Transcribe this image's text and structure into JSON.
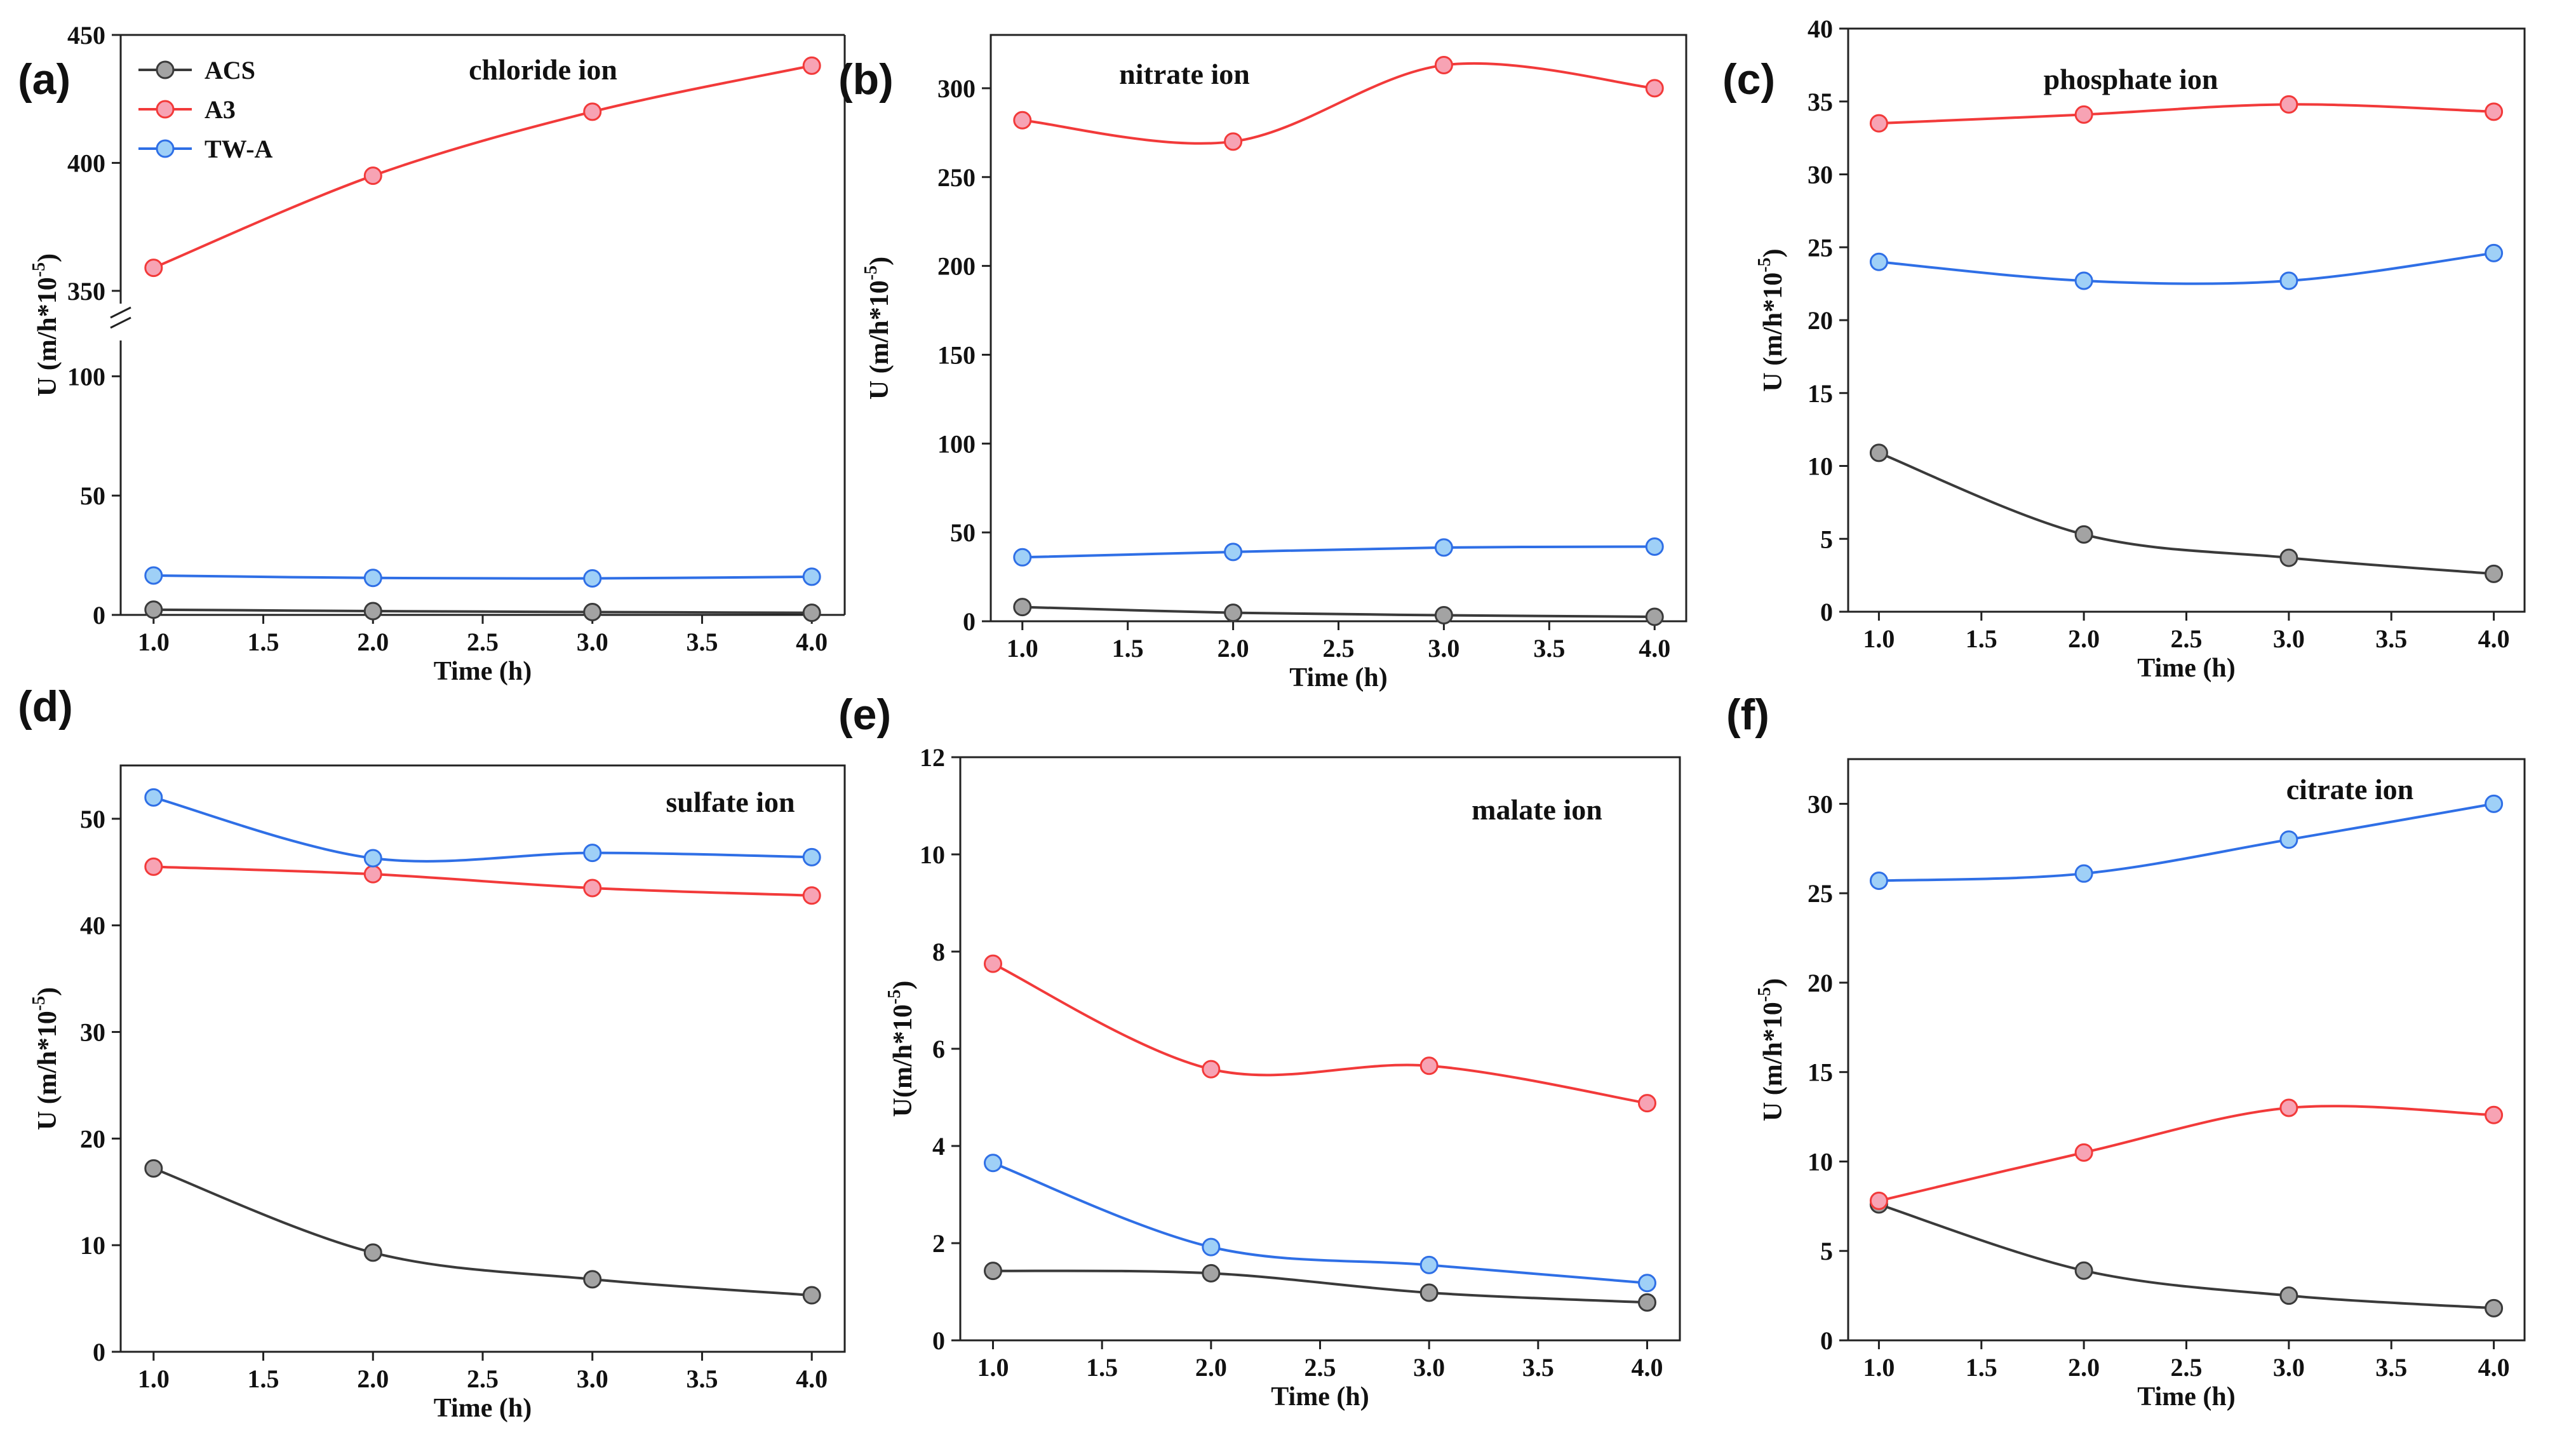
{
  "legend": [
    {
      "name": "ACS",
      "color": "#3a3a3a",
      "fill": "#a3a3a3"
    },
    {
      "name": "A3",
      "color": "#f23a3a",
      "fill": "#f7a3b4"
    },
    {
      "name": "TW-A",
      "color": "#2f6fe6",
      "fill": "#9fd0f7"
    }
  ],
  "chart_data": [
    {
      "panel": "(a)",
      "type": "line",
      "annotation": "chloride ion",
      "xlabel": "Time (h)",
      "ylabel": "U (m/h*10",
      "ylabel_sup": "-5",
      "ylabel_close": ")",
      "x": [
        1.0,
        2.0,
        3.0,
        4.0
      ],
      "xticks": [
        "1.0",
        "1.5",
        "2.0",
        "2.5",
        "3.0",
        "3.5",
        "4.0"
      ],
      "broken_y": true,
      "yticks_lower": [
        "0",
        "50",
        "100"
      ],
      "yticks_upper": [
        "350",
        "400",
        "450"
      ],
      "ylim_lower": [
        0,
        115
      ],
      "ylim_upper": [
        345,
        450
      ],
      "series": [
        {
          "name": "ACS",
          "values": [
            2.2,
            1.6,
            1.2,
            0.9
          ]
        },
        {
          "name": "A3",
          "values": [
            359,
            395,
            420,
            438
          ]
        },
        {
          "name": "TW-A",
          "values": [
            16.5,
            15.5,
            15.3,
            16.0
          ]
        }
      ]
    },
    {
      "panel": "(b)",
      "type": "line",
      "annotation": "nitrate ion",
      "xlabel": "Time (h)",
      "ylabel": "U (m/h*10",
      "ylabel_sup": "-5",
      "ylabel_close": ")",
      "x": [
        1.0,
        2.0,
        3.0,
        4.0
      ],
      "xticks": [
        "1.0",
        "1.5",
        "2.0",
        "2.5",
        "3.0",
        "3.5",
        "4.0"
      ],
      "yticks": [
        "0",
        "50",
        "100",
        "150",
        "200",
        "250",
        "300"
      ],
      "ylim": [
        0,
        330
      ],
      "series": [
        {
          "name": "ACS",
          "values": [
            8.0,
            4.8,
            3.4,
            2.5
          ]
        },
        {
          "name": "A3",
          "values": [
            282,
            270,
            313,
            300
          ]
        },
        {
          "name": "TW-A",
          "values": [
            36,
            39,
            41.5,
            42
          ]
        }
      ]
    },
    {
      "panel": "(c)",
      "type": "line",
      "annotation": "phosphate ion",
      "xlabel": "Time (h)",
      "ylabel": "U (m/h*10",
      "ylabel_sup": "-5",
      "ylabel_close": ")",
      "x": [
        1.0,
        2.0,
        3.0,
        4.0
      ],
      "xticks": [
        "1.0",
        "1.5",
        "2.0",
        "2.5",
        "3.0",
        "3.5",
        "4.0"
      ],
      "yticks": [
        "0",
        "5",
        "10",
        "15",
        "20",
        "25",
        "30",
        "35",
        "40"
      ],
      "ylim": [
        0,
        40
      ],
      "series": [
        {
          "name": "ACS",
          "values": [
            10.9,
            5.3,
            3.7,
            2.6
          ]
        },
        {
          "name": "A3",
          "values": [
            33.5,
            34.1,
            34.8,
            34.3
          ]
        },
        {
          "name": "TW-A",
          "values": [
            24.0,
            22.7,
            22.7,
            24.6
          ]
        }
      ]
    },
    {
      "panel": "(d)",
      "type": "line",
      "annotation": "sulfate ion",
      "xlabel": "Time (h)",
      "ylabel": "U (m/h*10",
      "ylabel_sup": "-5",
      "ylabel_close": ")",
      "x": [
        1.0,
        2.0,
        3.0,
        4.0
      ],
      "xticks": [
        "1.0",
        "1.5",
        "2.0",
        "2.5",
        "3.0",
        "3.5",
        "4.0"
      ],
      "yticks": [
        "0",
        "10",
        "20",
        "30",
        "40",
        "50"
      ],
      "ylim": [
        0,
        55
      ],
      "series": [
        {
          "name": "ACS",
          "values": [
            17.2,
            9.3,
            6.8,
            5.3
          ]
        },
        {
          "name": "A3",
          "values": [
            45.5,
            44.8,
            43.5,
            42.8
          ]
        },
        {
          "name": "TW-A",
          "values": [
            52.0,
            46.3,
            46.8,
            46.4
          ]
        }
      ]
    },
    {
      "panel": "(e)",
      "type": "line",
      "annotation": "malate ion",
      "xlabel": "Time (h)",
      "ylabel": "U(m/h*10",
      "ylabel_sup": "-5",
      "ylabel_close": ")",
      "x": [
        1.0,
        2.0,
        3.0,
        4.0
      ],
      "xticks": [
        "1.0",
        "1.5",
        "2.0",
        "2.5",
        "3.0",
        "3.5",
        "4.0"
      ],
      "yticks": [
        "0",
        "2",
        "4",
        "6",
        "8",
        "10",
        "12"
      ],
      "ylim": [
        0,
        12
      ],
      "series": [
        {
          "name": "ACS",
          "values": [
            1.43,
            1.38,
            0.98,
            0.78
          ]
        },
        {
          "name": "A3",
          "values": [
            7.75,
            5.58,
            5.65,
            4.88
          ]
        },
        {
          "name": "TW-A",
          "values": [
            3.65,
            1.92,
            1.55,
            1.18
          ]
        }
      ]
    },
    {
      "panel": "(f)",
      "type": "line",
      "annotation": "citrate ion",
      "xlabel": "Time (h)",
      "ylabel": "U (m/h*10",
      "ylabel_sup": "-5",
      "ylabel_close": ")",
      "x": [
        1.0,
        2.0,
        3.0,
        4.0
      ],
      "xticks": [
        "1.0",
        "1.5",
        "2.0",
        "2.5",
        "3.0",
        "3.5",
        "4.0"
      ],
      "yticks": [
        "0",
        "5",
        "10",
        "15",
        "20",
        "25",
        "30"
      ],
      "ylim": [
        0,
        32.5
      ],
      "series": [
        {
          "name": "ACS",
          "values": [
            7.6,
            3.9,
            2.5,
            1.8
          ]
        },
        {
          "name": "A3",
          "values": [
            7.8,
            10.5,
            13.0,
            12.6
          ]
        },
        {
          "name": "TW-A",
          "values": [
            25.7,
            26.1,
            28.0,
            30.0
          ]
        }
      ]
    }
  ]
}
